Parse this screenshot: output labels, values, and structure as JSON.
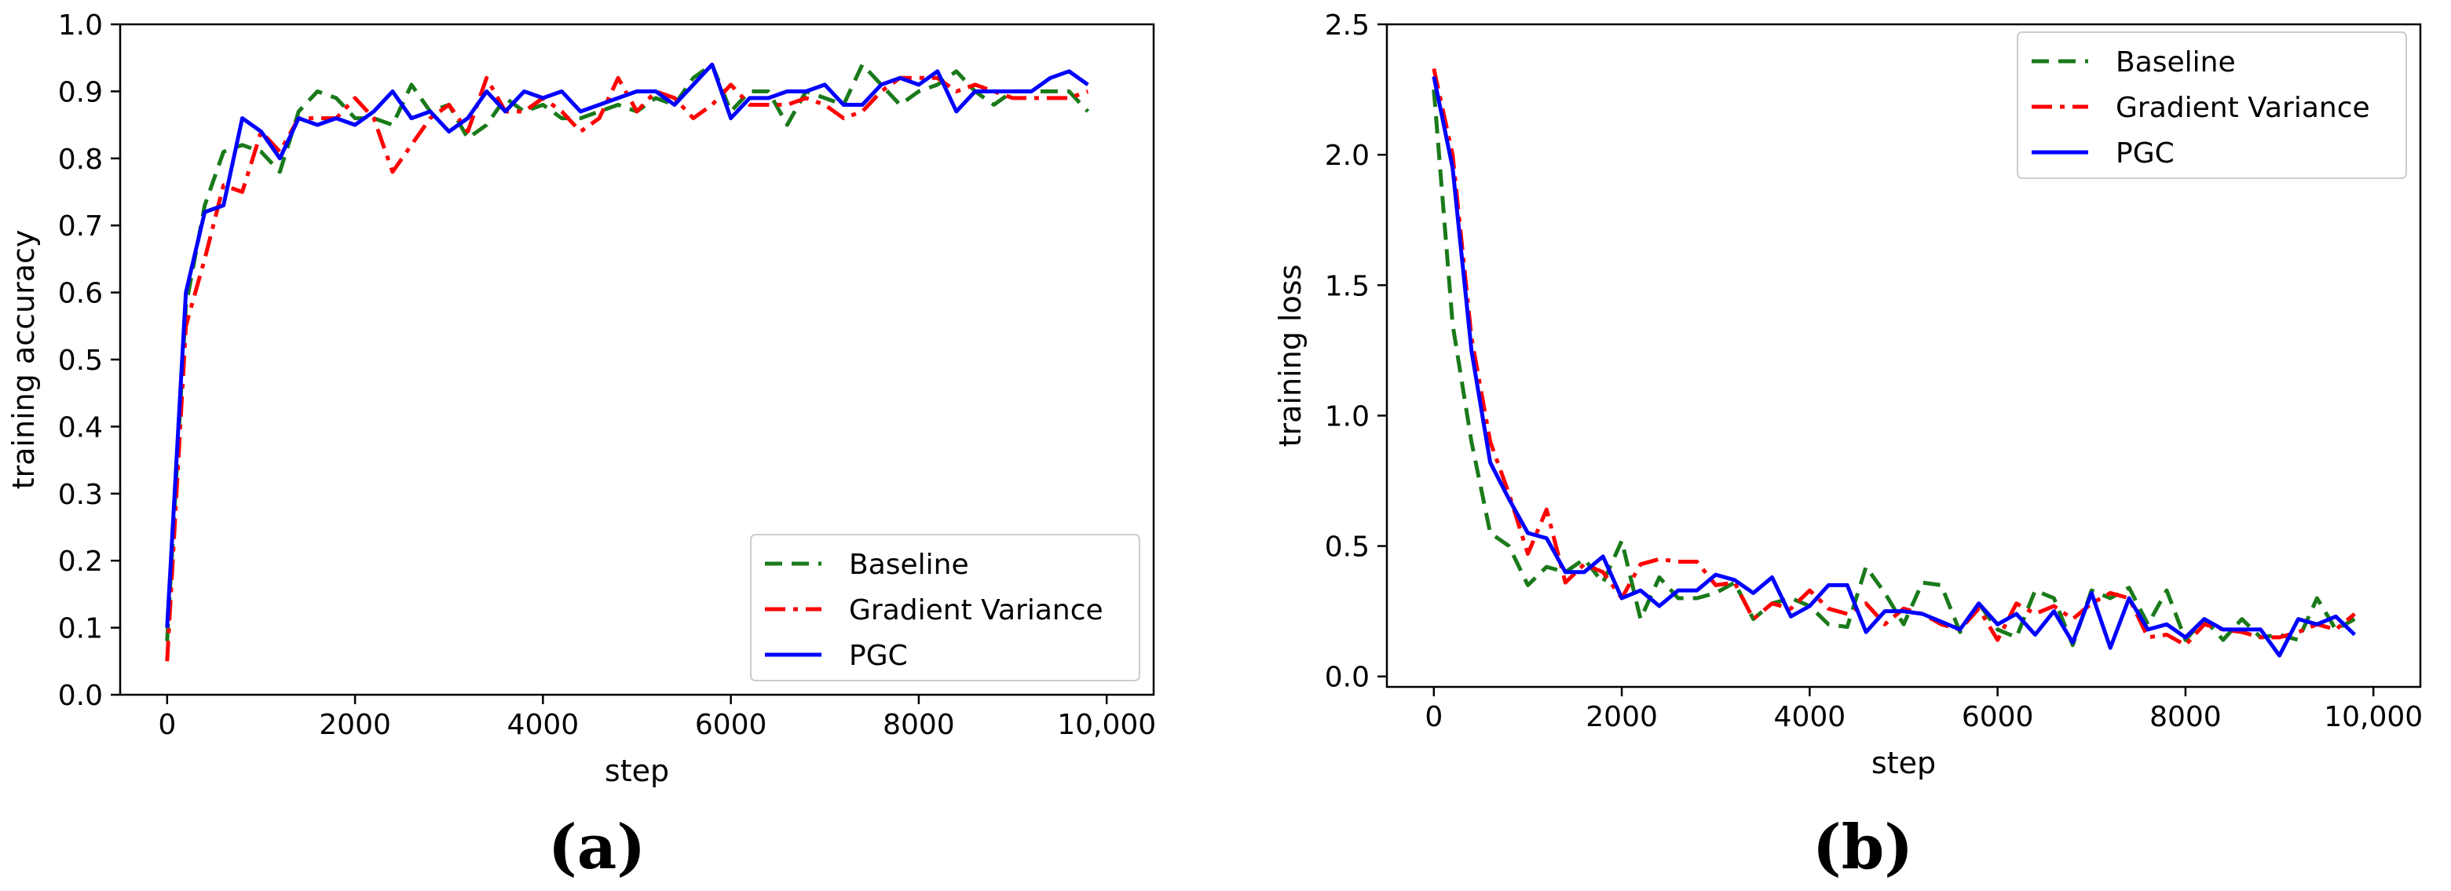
{
  "colors": {
    "baseline": "#1a7a1a",
    "gradient_variance": "#ff0000",
    "pgc": "#0000ff"
  },
  "chart_data": [
    {
      "id": "a",
      "type": "line",
      "panel_label": "(a)",
      "xlabel": "step",
      "ylabel": "training accuracy",
      "xlim": [
        -500,
        10500
      ],
      "ylim": [
        0.0,
        1.0
      ],
      "xticks": [
        0,
        2000,
        4000,
        6000,
        8000,
        10000
      ],
      "xtick_labels": [
        "0",
        "2000",
        "4000",
        "6000",
        "8000",
        "10,000"
      ],
      "yticks": [
        0.0,
        0.1,
        0.2,
        0.3,
        0.4,
        0.5,
        0.6,
        0.7,
        0.8,
        0.9,
        1.0
      ],
      "ytick_labels": [
        "0.0",
        "0.1",
        "0.2",
        "0.3",
        "0.4",
        "0.5",
        "0.6",
        "0.7",
        "0.8",
        "0.9",
        "1.0"
      ],
      "legend_position": "bottom-right",
      "x": [
        0,
        200,
        400,
        600,
        800,
        1000,
        1200,
        1400,
        1600,
        1800,
        2000,
        2200,
        2400,
        2600,
        2800,
        3000,
        3200,
        3400,
        3600,
        3800,
        4000,
        4200,
        4400,
        4600,
        4800,
        5000,
        5200,
        5400,
        5600,
        5800,
        6000,
        6200,
        6400,
        6600,
        6800,
        7000,
        7200,
        7400,
        7600,
        7800,
        8000,
        8200,
        8400,
        8600,
        8800,
        9000,
        9200,
        9400,
        9600,
        9800
      ],
      "series": [
        {
          "name": "Baseline",
          "style": "dashed",
          "values": [
            0.08,
            0.58,
            0.73,
            0.81,
            0.82,
            0.81,
            0.78,
            0.87,
            0.9,
            0.89,
            0.86,
            0.86,
            0.85,
            0.91,
            0.87,
            0.88,
            0.83,
            0.85,
            0.89,
            0.87,
            0.88,
            0.86,
            0.86,
            0.87,
            0.88,
            0.87,
            0.89,
            0.88,
            0.92,
            0.94,
            0.87,
            0.9,
            0.9,
            0.85,
            0.9,
            0.89,
            0.88,
            0.94,
            0.91,
            0.88,
            0.9,
            0.91,
            0.93,
            0.9,
            0.88,
            0.9,
            0.9,
            0.9,
            0.9,
            0.87
          ]
        },
        {
          "name": "Gradient Variance",
          "style": "dashdot",
          "values": [
            0.05,
            0.55,
            0.65,
            0.76,
            0.75,
            0.84,
            0.81,
            0.86,
            0.86,
            0.86,
            0.89,
            0.86,
            0.78,
            0.82,
            0.86,
            0.88,
            0.84,
            0.92,
            0.87,
            0.87,
            0.89,
            0.87,
            0.84,
            0.86,
            0.92,
            0.87,
            0.9,
            0.89,
            0.86,
            0.88,
            0.91,
            0.88,
            0.88,
            0.88,
            0.89,
            0.88,
            0.86,
            0.87,
            0.9,
            0.92,
            0.92,
            0.92,
            0.9,
            0.91,
            0.9,
            0.89,
            0.89,
            0.89,
            0.89,
            0.9
          ]
        },
        {
          "name": "PGC",
          "style": "solid",
          "values": [
            0.1,
            0.6,
            0.72,
            0.73,
            0.86,
            0.84,
            0.8,
            0.86,
            0.85,
            0.86,
            0.85,
            0.87,
            0.9,
            0.86,
            0.87,
            0.84,
            0.86,
            0.9,
            0.87,
            0.9,
            0.89,
            0.9,
            0.87,
            0.88,
            0.89,
            0.9,
            0.9,
            0.88,
            0.91,
            0.94,
            0.86,
            0.89,
            0.89,
            0.9,
            0.9,
            0.91,
            0.88,
            0.88,
            0.91,
            0.92,
            0.91,
            0.93,
            0.87,
            0.9,
            0.9,
            0.9,
            0.9,
            0.92,
            0.93,
            0.91
          ]
        }
      ]
    },
    {
      "id": "b",
      "type": "line",
      "panel_label": "(b)",
      "xlabel": "step",
      "ylabel": "training loss",
      "xlim": [
        -500,
        10500
      ],
      "ylim": [
        -0.04,
        2.5
      ],
      "xticks": [
        0,
        2000,
        4000,
        6000,
        8000,
        10000
      ],
      "xtick_labels": [
        "0",
        "2000",
        "4000",
        "6000",
        "8000",
        "10,000"
      ],
      "yticks": [
        0.0,
        0.5,
        1.0,
        1.5,
        2.0,
        2.5
      ],
      "ytick_labels": [
        "0.0",
        "0.5",
        "1.0",
        "1.5",
        "2.0",
        "2.5"
      ],
      "legend_position": "top-right",
      "x": [
        0,
        200,
        400,
        600,
        800,
        1000,
        1200,
        1400,
        1600,
        1800,
        2000,
        2200,
        2400,
        2600,
        2800,
        3000,
        3200,
        3400,
        3600,
        3800,
        4000,
        4200,
        4400,
        4600,
        4800,
        5000,
        5200,
        5400,
        5600,
        5800,
        6000,
        6200,
        6400,
        6600,
        6800,
        7000,
        7200,
        7400,
        7600,
        7800,
        8000,
        8200,
        8400,
        8600,
        8800,
        9000,
        9200,
        9400,
        9600,
        9800
      ],
      "series": [
        {
          "name": "Baseline",
          "style": "dashed",
          "values": [
            2.25,
            1.35,
            0.9,
            0.55,
            0.5,
            0.35,
            0.42,
            0.4,
            0.45,
            0.36,
            0.52,
            0.22,
            0.38,
            0.3,
            0.3,
            0.32,
            0.36,
            0.22,
            0.28,
            0.3,
            0.27,
            0.2,
            0.19,
            0.42,
            0.32,
            0.2,
            0.36,
            0.35,
            0.17,
            0.28,
            0.18,
            0.15,
            0.33,
            0.3,
            0.12,
            0.33,
            0.3,
            0.34,
            0.2,
            0.33,
            0.14,
            0.22,
            0.14,
            0.22,
            0.15,
            0.16,
            0.14,
            0.3,
            0.18,
            0.22
          ]
        },
        {
          "name": "Gradient Variance",
          "style": "dashdot",
          "values": [
            2.33,
            2.0,
            1.3,
            0.9,
            0.7,
            0.47,
            0.64,
            0.36,
            0.43,
            0.4,
            0.3,
            0.43,
            0.45,
            0.44,
            0.44,
            0.35,
            0.36,
            0.22,
            0.28,
            0.26,
            0.33,
            0.26,
            0.24,
            0.28,
            0.2,
            0.26,
            0.24,
            0.2,
            0.18,
            0.26,
            0.14,
            0.28,
            0.24,
            0.27,
            0.22,
            0.28,
            0.32,
            0.3,
            0.15,
            0.16,
            0.12,
            0.2,
            0.18,
            0.17,
            0.15,
            0.15,
            0.17,
            0.2,
            0.18,
            0.24
          ]
        },
        {
          "name": "PGC",
          "style": "solid",
          "values": [
            2.3,
            1.95,
            1.25,
            0.82,
            0.68,
            0.55,
            0.53,
            0.4,
            0.4,
            0.46,
            0.3,
            0.33,
            0.27,
            0.33,
            0.33,
            0.39,
            0.37,
            0.32,
            0.38,
            0.23,
            0.27,
            0.35,
            0.35,
            0.17,
            0.25,
            0.25,
            0.24,
            0.21,
            0.18,
            0.28,
            0.2,
            0.24,
            0.16,
            0.25,
            0.13,
            0.32,
            0.11,
            0.3,
            0.18,
            0.2,
            0.15,
            0.22,
            0.18,
            0.18,
            0.18,
            0.08,
            0.22,
            0.2,
            0.23,
            0.16
          ]
        }
      ]
    }
  ]
}
